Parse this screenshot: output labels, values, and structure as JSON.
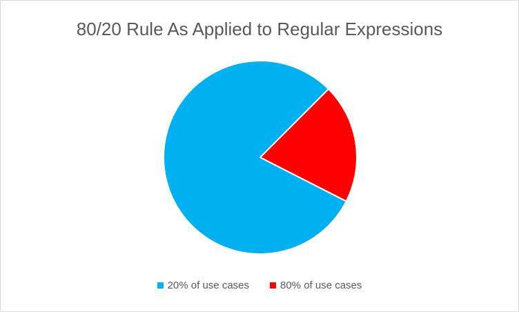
{
  "chart_data": {
    "type": "pie",
    "title": "80/20 Rule As Applied to Regular Expressions",
    "categories": [
      "20% of use cases",
      "80% of use cases"
    ],
    "values": [
      80,
      20
    ],
    "colors": [
      "#00b0f0",
      "#ff0000"
    ],
    "legend_position": "bottom",
    "start_angle_deg": 45
  }
}
